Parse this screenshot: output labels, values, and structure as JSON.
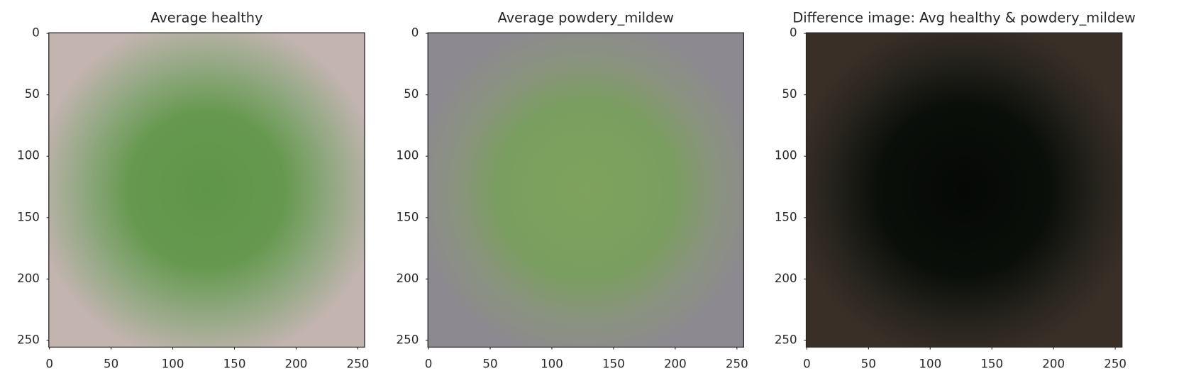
{
  "chart_data": [
    {
      "type": "image",
      "title": "Average healthy",
      "xlim": [
        -0.5,
        255.5
      ],
      "ylim": [
        255.5,
        -0.5
      ],
      "xticks": [
        0,
        50,
        100,
        150,
        200,
        250
      ],
      "yticks": [
        0,
        50,
        100,
        150,
        200,
        250
      ]
    },
    {
      "type": "image",
      "title": "Average powdery_mildew",
      "xlim": [
        -0.5,
        255.5
      ],
      "ylim": [
        255.5,
        -0.5
      ],
      "xticks": [
        0,
        50,
        100,
        150,
        200,
        250
      ],
      "yticks": [
        0,
        50,
        100,
        150,
        200,
        250
      ]
    },
    {
      "type": "image",
      "title": "Difference image: Avg healthy & powdery_mildew",
      "xlim": [
        -0.5,
        255.5
      ],
      "ylim": [
        255.5,
        -0.5
      ],
      "xticks": [
        0,
        50,
        100,
        150,
        200,
        250
      ],
      "yticks": [
        0,
        50,
        100,
        150,
        200,
        250
      ]
    }
  ]
}
